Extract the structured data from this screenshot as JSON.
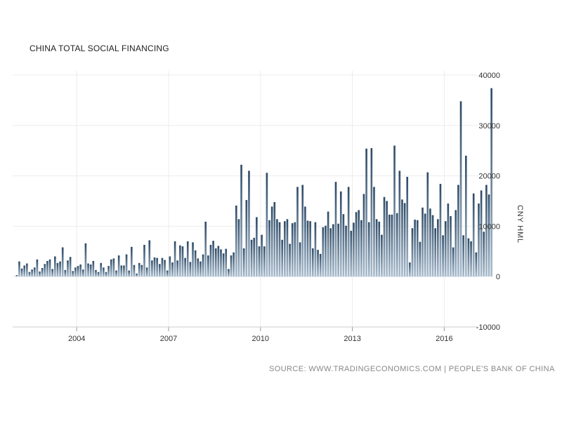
{
  "chart_data": {
    "type": "bar",
    "title": "CHINA TOTAL SOCIAL FINANCING",
    "ylabel": "CNY HML",
    "ylim": [
      -10000,
      40000
    ],
    "yticks": [
      "40000",
      "30000",
      "20000",
      "10000",
      "0",
      "-10000"
    ],
    "xticks": [
      "2004",
      "2007",
      "2010",
      "2013",
      "2016"
    ],
    "x_start": "2002-01",
    "x_end": "2017-01",
    "bar_color": "#2d4a66",
    "grid": true,
    "source": "SOURCE: WWW.TRADINGECONOMICS.COM | PEOPLE'S BANK OF CHINA",
    "values": [
      300,
      3000,
      1600,
      2200,
      2600,
      900,
      1400,
      1800,
      3400,
      1000,
      1700,
      2500,
      3100,
      3400,
      1500,
      4000,
      2700,
      3000,
      5800,
      1300,
      3200,
      3900,
      1100,
      1800,
      2100,
      2400,
      1400,
      6600,
      2600,
      2400,
      3100,
      1300,
      900,
      2700,
      1800,
      900,
      2100,
      3400,
      3600,
      1200,
      4200,
      2200,
      2200,
      4400,
      1200,
      5900,
      2300,
      600,
      2700,
      2300,
      6300,
      1800,
      7200,
      3200,
      3800,
      3700,
      2500,
      3700,
      3300,
      1200,
      4000,
      2800,
      7000,
      3200,
      6200,
      6000,
      3700,
      7000,
      2900,
      6800,
      5200,
      3600,
      3000,
      4400,
      10900,
      4200,
      6300,
      7100,
      5600,
      6100,
      5400,
      4600,
      5500,
      1500,
      4200,
      4800,
      14100,
      11400,
      22200,
      5600,
      15200,
      21000,
      7300,
      7700,
      11800,
      6000,
      8300,
      6000,
      20600,
      11200,
      13900,
      14800,
      11400,
      10800,
      7300,
      11000,
      11400,
      6500,
      10600,
      10800,
      17800,
      6800,
      18200,
      13900,
      11100,
      11000,
      5600,
      10800,
      5300,
      4500,
      9800,
      10100,
      12900,
      9600,
      10400,
      18800,
      10500,
      16900,
      12400,
      10100,
      17800,
      9100,
      10700,
      12800,
      13200,
      11200,
      16400,
      25400,
      10800,
      25500,
      17800,
      11400,
      10900,
      8300,
      15800,
      15000,
      12300,
      12300,
      26000,
      12600,
      21000,
      15300,
      14600,
      19800,
      2800,
      9600,
      11300,
      11200,
      6900,
      13700,
      12500,
      20700,
      13500,
      12200,
      9600,
      11400,
      18400,
      8200,
      11000,
      14500,
      12000,
      5800,
      13200,
      18200,
      34800,
      8200,
      24000,
      7600,
      7000,
      16500,
      4800,
      14500,
      17100,
      8900,
      18200,
      16300,
      37400
    ]
  }
}
